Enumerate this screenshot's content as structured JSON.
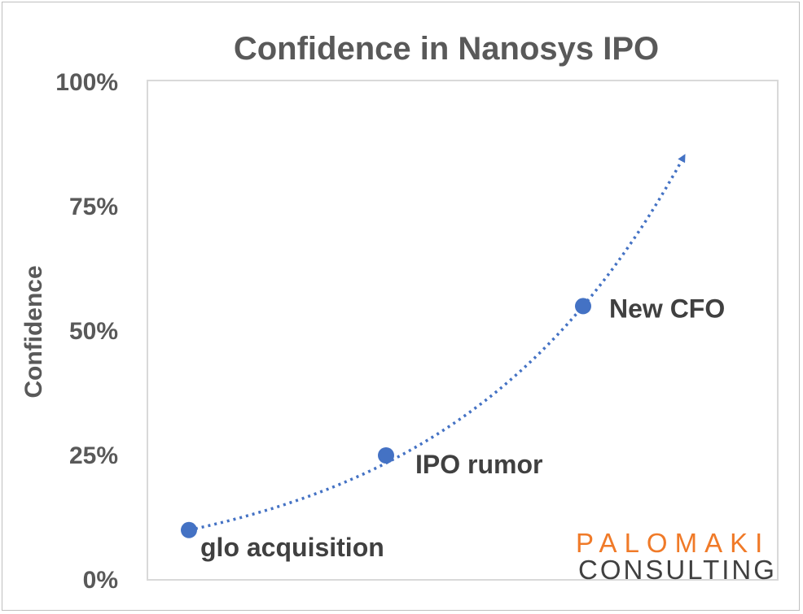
{
  "chart_data": {
    "type": "scatter",
    "title": "Confidence in Nanosys IPO",
    "xlabel": "",
    "ylabel": "Confidence",
    "ylim": [
      0,
      1
    ],
    "yticks": [
      "0%",
      "25%",
      "50%",
      "75%",
      "100%"
    ],
    "grid": false,
    "legend": "none",
    "points": [
      {
        "x": 1,
        "y": 0.1,
        "label": "glo acquisition"
      },
      {
        "x": 2,
        "y": 0.25,
        "label": "IPO rumor"
      },
      {
        "x": 3,
        "y": 0.55,
        "label": "New CFO"
      }
    ],
    "trend": {
      "style": "dotted",
      "type": "exponential",
      "arrow": true,
      "extends_to_y": 0.85
    },
    "colors": {
      "marker": "#4472c4",
      "trend": "#4472c4",
      "text": "#595959"
    }
  },
  "logo": {
    "line1": "PALOMAKI",
    "line2": "CONSULTING"
  }
}
